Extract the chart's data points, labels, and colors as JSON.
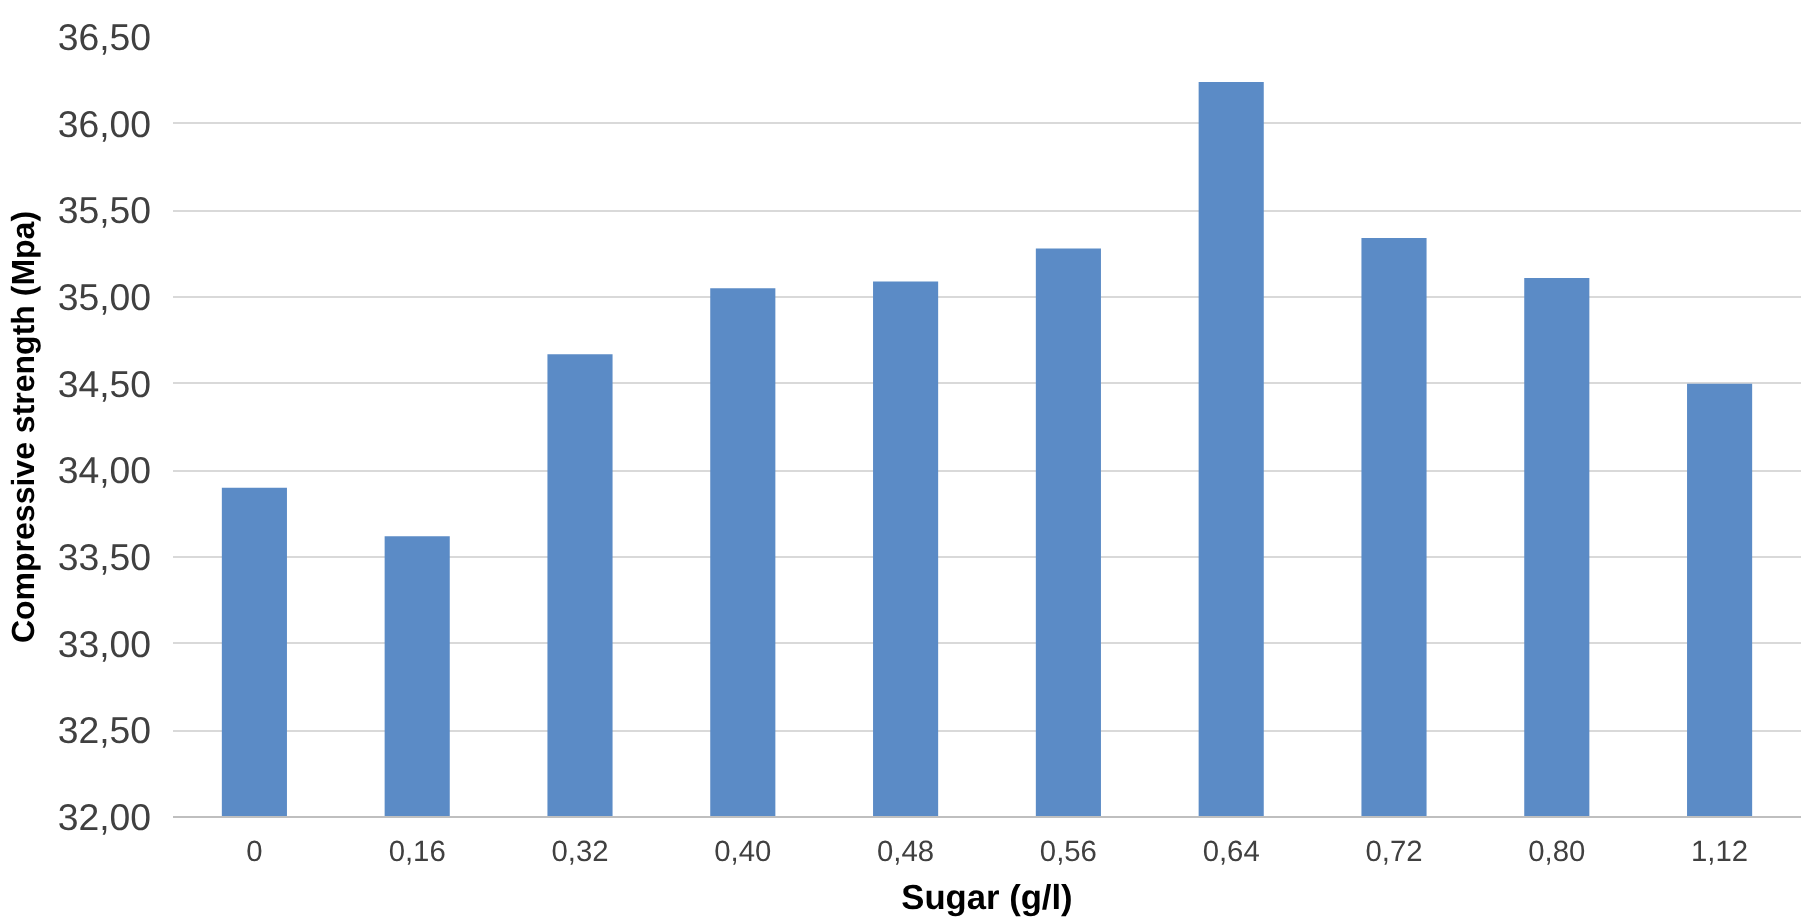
{
  "chart_data": {
    "type": "bar",
    "xlabel": "Sugar (g/l)",
    "ylabel": "Compressive strength (Mpa)",
    "categories": [
      "0",
      "0,16",
      "0,32",
      "0,40",
      "0,48",
      "0,56",
      "0,64",
      "0,72",
      "0,80",
      "1,12"
    ],
    "values": [
      33.9,
      33.62,
      34.67,
      35.05,
      35.09,
      35.28,
      36.24,
      35.34,
      35.11,
      34.5
    ],
    "color": "#5b8bc6",
    "ylim": [
      32,
      36.5
    ],
    "yticks": [
      {
        "value": 32,
        "label": "32,00"
      },
      {
        "value": 32.5,
        "label": "32,50"
      },
      {
        "value": 33,
        "label": "33,00"
      },
      {
        "value": 33.5,
        "label": "33,50"
      },
      {
        "value": 34,
        "label": "34,00"
      },
      {
        "value": 34.5,
        "label": "34,50"
      },
      {
        "value": 35,
        "label": "35,00"
      },
      {
        "value": 35.5,
        "label": "35,50"
      },
      {
        "value": 36,
        "label": "36,00"
      },
      {
        "value": 36.5,
        "label": "36,50"
      }
    ],
    "grid": "y"
  }
}
